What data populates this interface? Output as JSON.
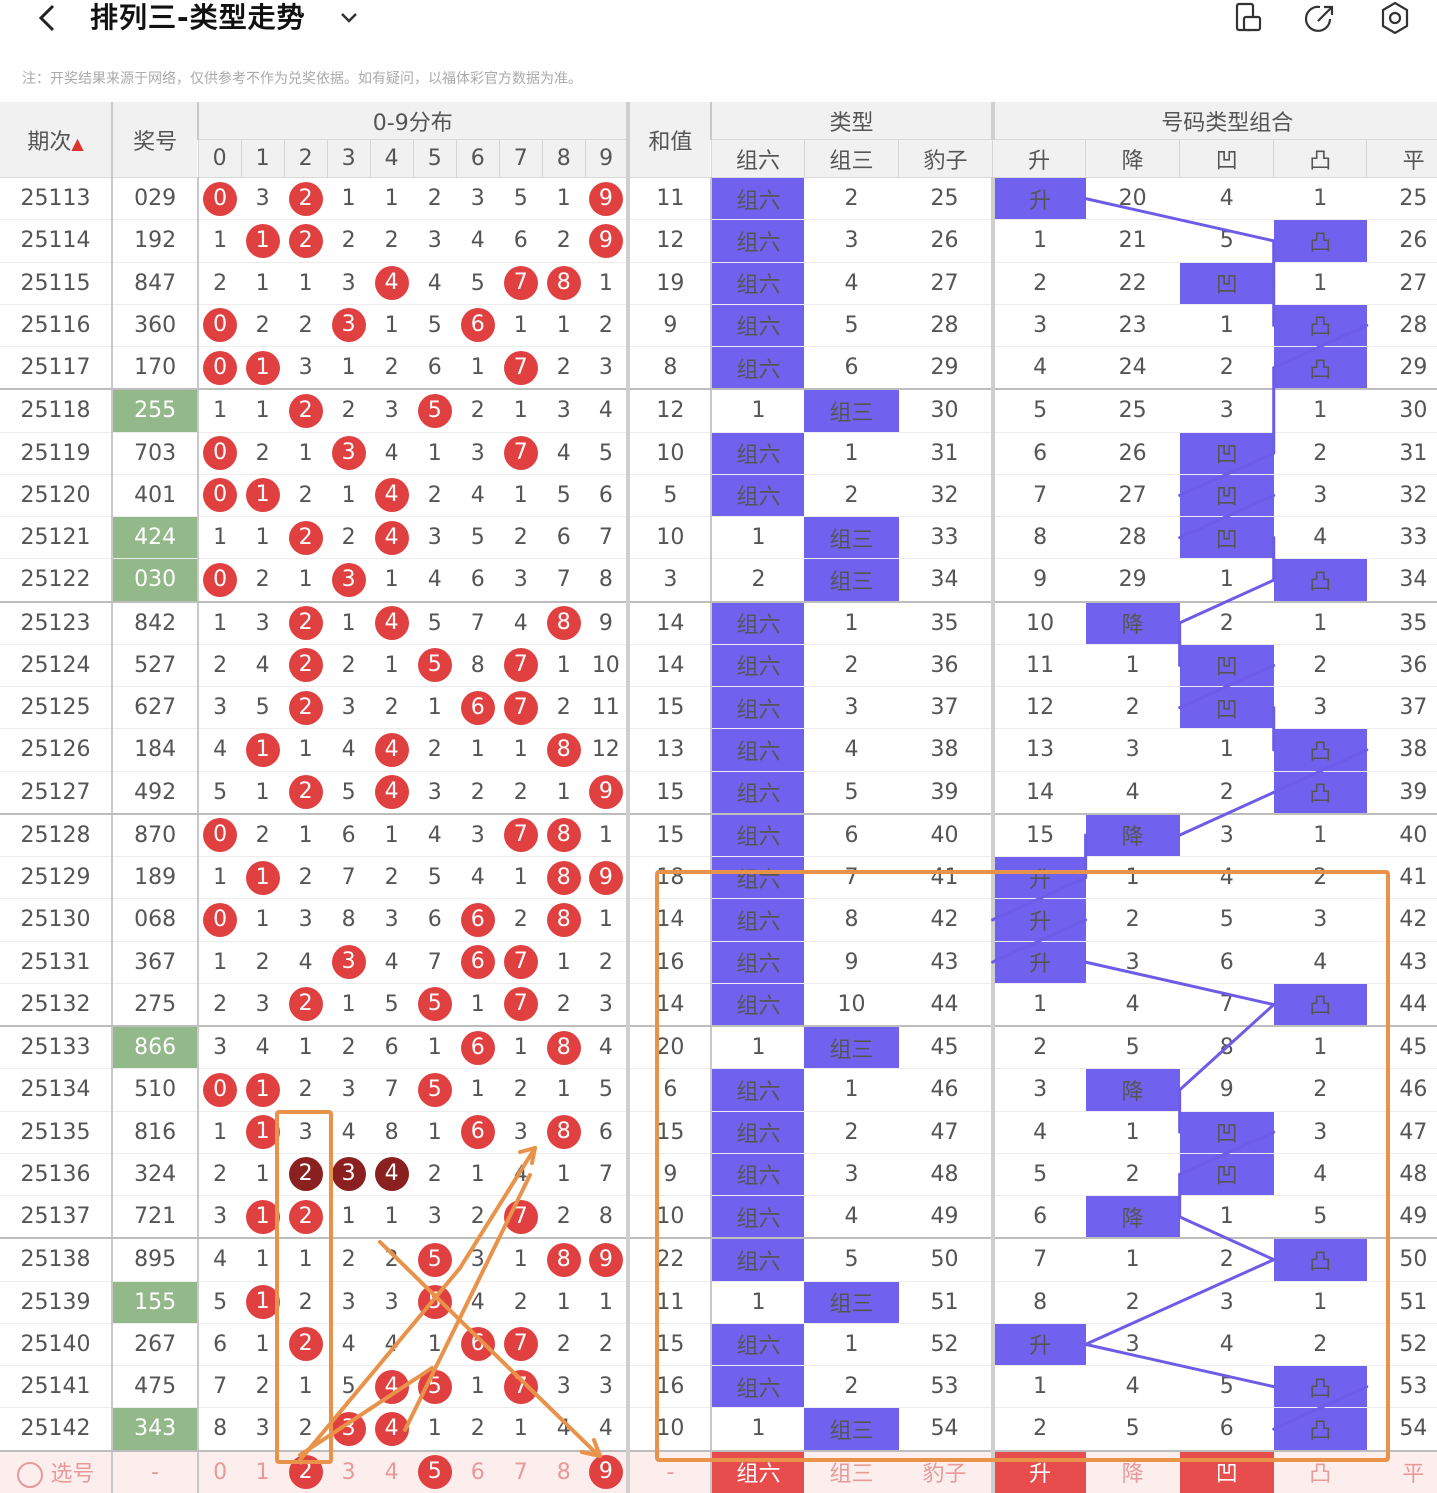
{
  "header": {
    "title": "排列三-类型走势",
    "note": "注：开奖结果来源于网络，仅供参考不作为兑奖依据。如有疑问，以福体彩官方数据为准。"
  },
  "table": {
    "col_period": "期次",
    "col_award": "奖号",
    "group_dist": "0-9分布",
    "digits": [
      "0",
      "1",
      "2",
      "3",
      "4",
      "5",
      "6",
      "7",
      "8",
      "9"
    ],
    "col_sum": "和值",
    "group_type": "类型",
    "type_cols": [
      "组六",
      "组三",
      "豹子"
    ],
    "group_combo": "号码类型组合",
    "combo_cols": [
      "升",
      "降",
      "凹",
      "凸",
      "平"
    ]
  },
  "rows": [
    {
      "p": "25113",
      "a": "029",
      "g": false,
      "d": [
        "0",
        "3",
        "2",
        "1",
        "1",
        "2",
        "3",
        "5",
        "1",
        "9"
      ],
      "s": "11",
      "t": [
        "组六",
        "2",
        "25"
      ],
      "c": [
        "升",
        "20",
        "4",
        "1",
        "25"
      ]
    },
    {
      "p": "25114",
      "a": "192",
      "g": false,
      "d": [
        "1",
        "1",
        "2",
        "2",
        "2",
        "3",
        "4",
        "6",
        "2",
        "9"
      ],
      "s": "12",
      "t": [
        "组六",
        "3",
        "26"
      ],
      "c": [
        "1",
        "21",
        "5",
        "凸",
        "26"
      ]
    },
    {
      "p": "25115",
      "a": "847",
      "g": false,
      "d": [
        "2",
        "1",
        "1",
        "3",
        "4",
        "4",
        "5",
        "7",
        "8",
        "1"
      ],
      "s": "19",
      "t": [
        "组六",
        "4",
        "27"
      ],
      "c": [
        "2",
        "22",
        "凹",
        "1",
        "27"
      ]
    },
    {
      "p": "25116",
      "a": "360",
      "g": false,
      "d": [
        "0",
        "2",
        "2",
        "3",
        "1",
        "5",
        "6",
        "1",
        "1",
        "2"
      ],
      "s": "9",
      "t": [
        "组六",
        "5",
        "28"
      ],
      "c": [
        "3",
        "23",
        "1",
        "凸",
        "28"
      ]
    },
    {
      "p": "25117",
      "a": "170",
      "g": false,
      "d": [
        "0",
        "1",
        "3",
        "1",
        "2",
        "6",
        "1",
        "7",
        "2",
        "3"
      ],
      "s": "8",
      "t": [
        "组六",
        "6",
        "29"
      ],
      "c": [
        "4",
        "24",
        "2",
        "凸",
        "29"
      ]
    },
    {
      "p": "25118",
      "a": "255",
      "g": true,
      "d": [
        "1",
        "1",
        "2",
        "2",
        "3",
        "5",
        "2",
        "1",
        "3",
        "4"
      ],
      "s": "12",
      "t": [
        "1",
        "组三",
        "30"
      ],
      "c": [
        "5",
        "25",
        "3",
        "1",
        "30"
      ]
    },
    {
      "p": "25119",
      "a": "703",
      "g": false,
      "d": [
        "0",
        "2",
        "1",
        "3",
        "4",
        "1",
        "3",
        "7",
        "4",
        "5"
      ],
      "s": "10",
      "t": [
        "组六",
        "1",
        "31"
      ],
      "c": [
        "6",
        "26",
        "凹",
        "2",
        "31"
      ]
    },
    {
      "p": "25120",
      "a": "401",
      "g": false,
      "d": [
        "0",
        "1",
        "2",
        "1",
        "4",
        "2",
        "4",
        "1",
        "5",
        "6"
      ],
      "s": "5",
      "t": [
        "组六",
        "2",
        "32"
      ],
      "c": [
        "7",
        "27",
        "凹",
        "3",
        "32"
      ]
    },
    {
      "p": "25121",
      "a": "424",
      "g": true,
      "d": [
        "1",
        "1",
        "2",
        "2",
        "4",
        "3",
        "5",
        "2",
        "6",
        "7"
      ],
      "s": "10",
      "t": [
        "1",
        "组三",
        "33"
      ],
      "c": [
        "8",
        "28",
        "凹",
        "4",
        "33"
      ]
    },
    {
      "p": "25122",
      "a": "030",
      "g": true,
      "d": [
        "0",
        "2",
        "1",
        "3",
        "1",
        "4",
        "6",
        "3",
        "7",
        "8"
      ],
      "s": "3",
      "t": [
        "2",
        "组三",
        "34"
      ],
      "c": [
        "9",
        "29",
        "1",
        "凸",
        "34"
      ]
    },
    {
      "p": "25123",
      "a": "842",
      "g": false,
      "d": [
        "1",
        "3",
        "2",
        "1",
        "4",
        "5",
        "7",
        "4",
        "8",
        "9"
      ],
      "s": "14",
      "t": [
        "组六",
        "1",
        "35"
      ],
      "c": [
        "10",
        "降",
        "2",
        "1",
        "35"
      ]
    },
    {
      "p": "25124",
      "a": "527",
      "g": false,
      "d": [
        "2",
        "4",
        "2",
        "2",
        "1",
        "5",
        "8",
        "7",
        "1",
        "10"
      ],
      "s": "14",
      "t": [
        "组六",
        "2",
        "36"
      ],
      "c": [
        "11",
        "1",
        "凹",
        "2",
        "36"
      ]
    },
    {
      "p": "25125",
      "a": "627",
      "g": false,
      "d": [
        "3",
        "5",
        "2",
        "3",
        "2",
        "1",
        "6",
        "7",
        "2",
        "11"
      ],
      "s": "15",
      "t": [
        "组六",
        "3",
        "37"
      ],
      "c": [
        "12",
        "2",
        "凹",
        "3",
        "37"
      ]
    },
    {
      "p": "25126",
      "a": "184",
      "g": false,
      "d": [
        "4",
        "1",
        "1",
        "4",
        "4",
        "2",
        "1",
        "1",
        "8",
        "12"
      ],
      "s": "13",
      "t": [
        "组六",
        "4",
        "38"
      ],
      "c": [
        "13",
        "3",
        "1",
        "凸",
        "38"
      ]
    },
    {
      "p": "25127",
      "a": "492",
      "g": false,
      "d": [
        "5",
        "1",
        "2",
        "5",
        "4",
        "3",
        "2",
        "2",
        "1",
        "9"
      ],
      "s": "15",
      "t": [
        "组六",
        "5",
        "39"
      ],
      "c": [
        "14",
        "4",
        "2",
        "凸",
        "39"
      ]
    },
    {
      "p": "25128",
      "a": "870",
      "g": false,
      "d": [
        "0",
        "2",
        "1",
        "6",
        "1",
        "4",
        "3",
        "7",
        "8",
        "1"
      ],
      "s": "15",
      "t": [
        "组六",
        "6",
        "40"
      ],
      "c": [
        "15",
        "降",
        "3",
        "1",
        "40"
      ]
    },
    {
      "p": "25129",
      "a": "189",
      "g": false,
      "d": [
        "1",
        "1",
        "2",
        "7",
        "2",
        "5",
        "4",
        "1",
        "8",
        "9"
      ],
      "s": "18",
      "t": [
        "组六",
        "7",
        "41"
      ],
      "c": [
        "升",
        "1",
        "4",
        "2",
        "41"
      ]
    },
    {
      "p": "25130",
      "a": "068",
      "g": false,
      "d": [
        "0",
        "1",
        "3",
        "8",
        "3",
        "6",
        "6",
        "2",
        "8",
        "1"
      ],
      "s": "14",
      "t": [
        "组六",
        "8",
        "42"
      ],
      "c": [
        "升",
        "2",
        "5",
        "3",
        "42"
      ]
    },
    {
      "p": "25131",
      "a": "367",
      "g": false,
      "d": [
        "1",
        "2",
        "4",
        "3",
        "4",
        "7",
        "6",
        "7",
        "1",
        "2"
      ],
      "s": "16",
      "t": [
        "组六",
        "9",
        "43"
      ],
      "c": [
        "升",
        "3",
        "6",
        "4",
        "43"
      ]
    },
    {
      "p": "25132",
      "a": "275",
      "g": false,
      "d": [
        "2",
        "3",
        "2",
        "1",
        "5",
        "5",
        "1",
        "7",
        "2",
        "3"
      ],
      "s": "14",
      "t": [
        "组六",
        "10",
        "44"
      ],
      "c": [
        "1",
        "4",
        "7",
        "凸",
        "44"
      ]
    },
    {
      "p": "25133",
      "a": "866",
      "g": true,
      "d": [
        "3",
        "4",
        "1",
        "2",
        "6",
        "1",
        "6",
        "1",
        "8",
        "4"
      ],
      "s": "20",
      "t": [
        "1",
        "组三",
        "45"
      ],
      "c": [
        "2",
        "5",
        "8",
        "1",
        "45"
      ]
    },
    {
      "p": "25134",
      "a": "510",
      "g": false,
      "d": [
        "0",
        "1",
        "2",
        "3",
        "7",
        "5",
        "1",
        "2",
        "1",
        "5"
      ],
      "s": "6",
      "t": [
        "组六",
        "1",
        "46"
      ],
      "c": [
        "3",
        "降",
        "9",
        "2",
        "46"
      ]
    },
    {
      "p": "25135",
      "a": "816",
      "g": false,
      "d": [
        "1",
        "1",
        "3",
        "4",
        "8",
        "1",
        "6",
        "3",
        "8",
        "6"
      ],
      "s": "15",
      "t": [
        "组六",
        "2",
        "47"
      ],
      "c": [
        "4",
        "1",
        "凹",
        "3",
        "47"
      ]
    },
    {
      "p": "25136",
      "a": "324",
      "g": false,
      "d": [
        "2",
        "1",
        "2",
        "3",
        "4",
        "2",
        "1",
        "4",
        "1",
        "7"
      ],
      "s": "9",
      "t": [
        "组六",
        "3",
        "48"
      ],
      "c": [
        "5",
        "2",
        "凹",
        "4",
        "48"
      ]
    },
    {
      "p": "25137",
      "a": "721",
      "g": false,
      "d": [
        "3",
        "1",
        "2",
        "1",
        "1",
        "3",
        "2",
        "7",
        "2",
        "8"
      ],
      "s": "10",
      "t": [
        "组六",
        "4",
        "49"
      ],
      "c": [
        "6",
        "降",
        "1",
        "5",
        "49"
      ]
    },
    {
      "p": "25138",
      "a": "895",
      "g": false,
      "d": [
        "4",
        "1",
        "1",
        "2",
        "2",
        "5",
        "3",
        "1",
        "8",
        "9"
      ],
      "s": "22",
      "t": [
        "组六",
        "5",
        "50"
      ],
      "c": [
        "7",
        "1",
        "2",
        "凸",
        "50"
      ]
    },
    {
      "p": "25139",
      "a": "155",
      "g": true,
      "d": [
        "5",
        "1",
        "2",
        "3",
        "3",
        "5",
        "4",
        "2",
        "1",
        "1"
      ],
      "s": "11",
      "t": [
        "1",
        "组三",
        "51"
      ],
      "c": [
        "8",
        "2",
        "3",
        "1",
        "51"
      ]
    },
    {
      "p": "25140",
      "a": "267",
      "g": false,
      "d": [
        "6",
        "1",
        "2",
        "4",
        "4",
        "1",
        "6",
        "7",
        "2",
        "2"
      ],
      "s": "15",
      "t": [
        "组六",
        "1",
        "52"
      ],
      "c": [
        "升",
        "3",
        "4",
        "2",
        "52"
      ]
    },
    {
      "p": "25141",
      "a": "475",
      "g": false,
      "d": [
        "7",
        "2",
        "1",
        "5",
        "4",
        "5",
        "1",
        "7",
        "3",
        "3"
      ],
      "s": "16",
      "t": [
        "组六",
        "2",
        "53"
      ],
      "c": [
        "1",
        "4",
        "5",
        "凸",
        "53"
      ]
    },
    {
      "p": "25142",
      "a": "343",
      "g": true,
      "d": [
        "8",
        "3",
        "2",
        "3",
        "4",
        "1",
        "2",
        "1",
        "4",
        "4"
      ],
      "s": "10",
      "t": [
        "1",
        "组三",
        "54"
      ],
      "c": [
        "2",
        "5",
        "6",
        "凸",
        "54"
      ]
    }
  ],
  "select_row": {
    "label": "选号",
    "award": "-",
    "digits": [
      "0",
      "1",
      "2",
      "3",
      "4",
      "5",
      "6",
      "7",
      "8",
      "9"
    ],
    "sum": "-",
    "types": [
      "组六",
      "组三",
      "豹子"
    ],
    "combos": [
      "升",
      "降",
      "凹",
      "凸",
      "平"
    ]
  },
  "icons": {
    "back": "back-chevron-icon",
    "dropdown": "chevron-down-icon",
    "landscape": "screen-rotate-icon",
    "share": "share-icon",
    "settings": "settings-gear-icon"
  }
}
